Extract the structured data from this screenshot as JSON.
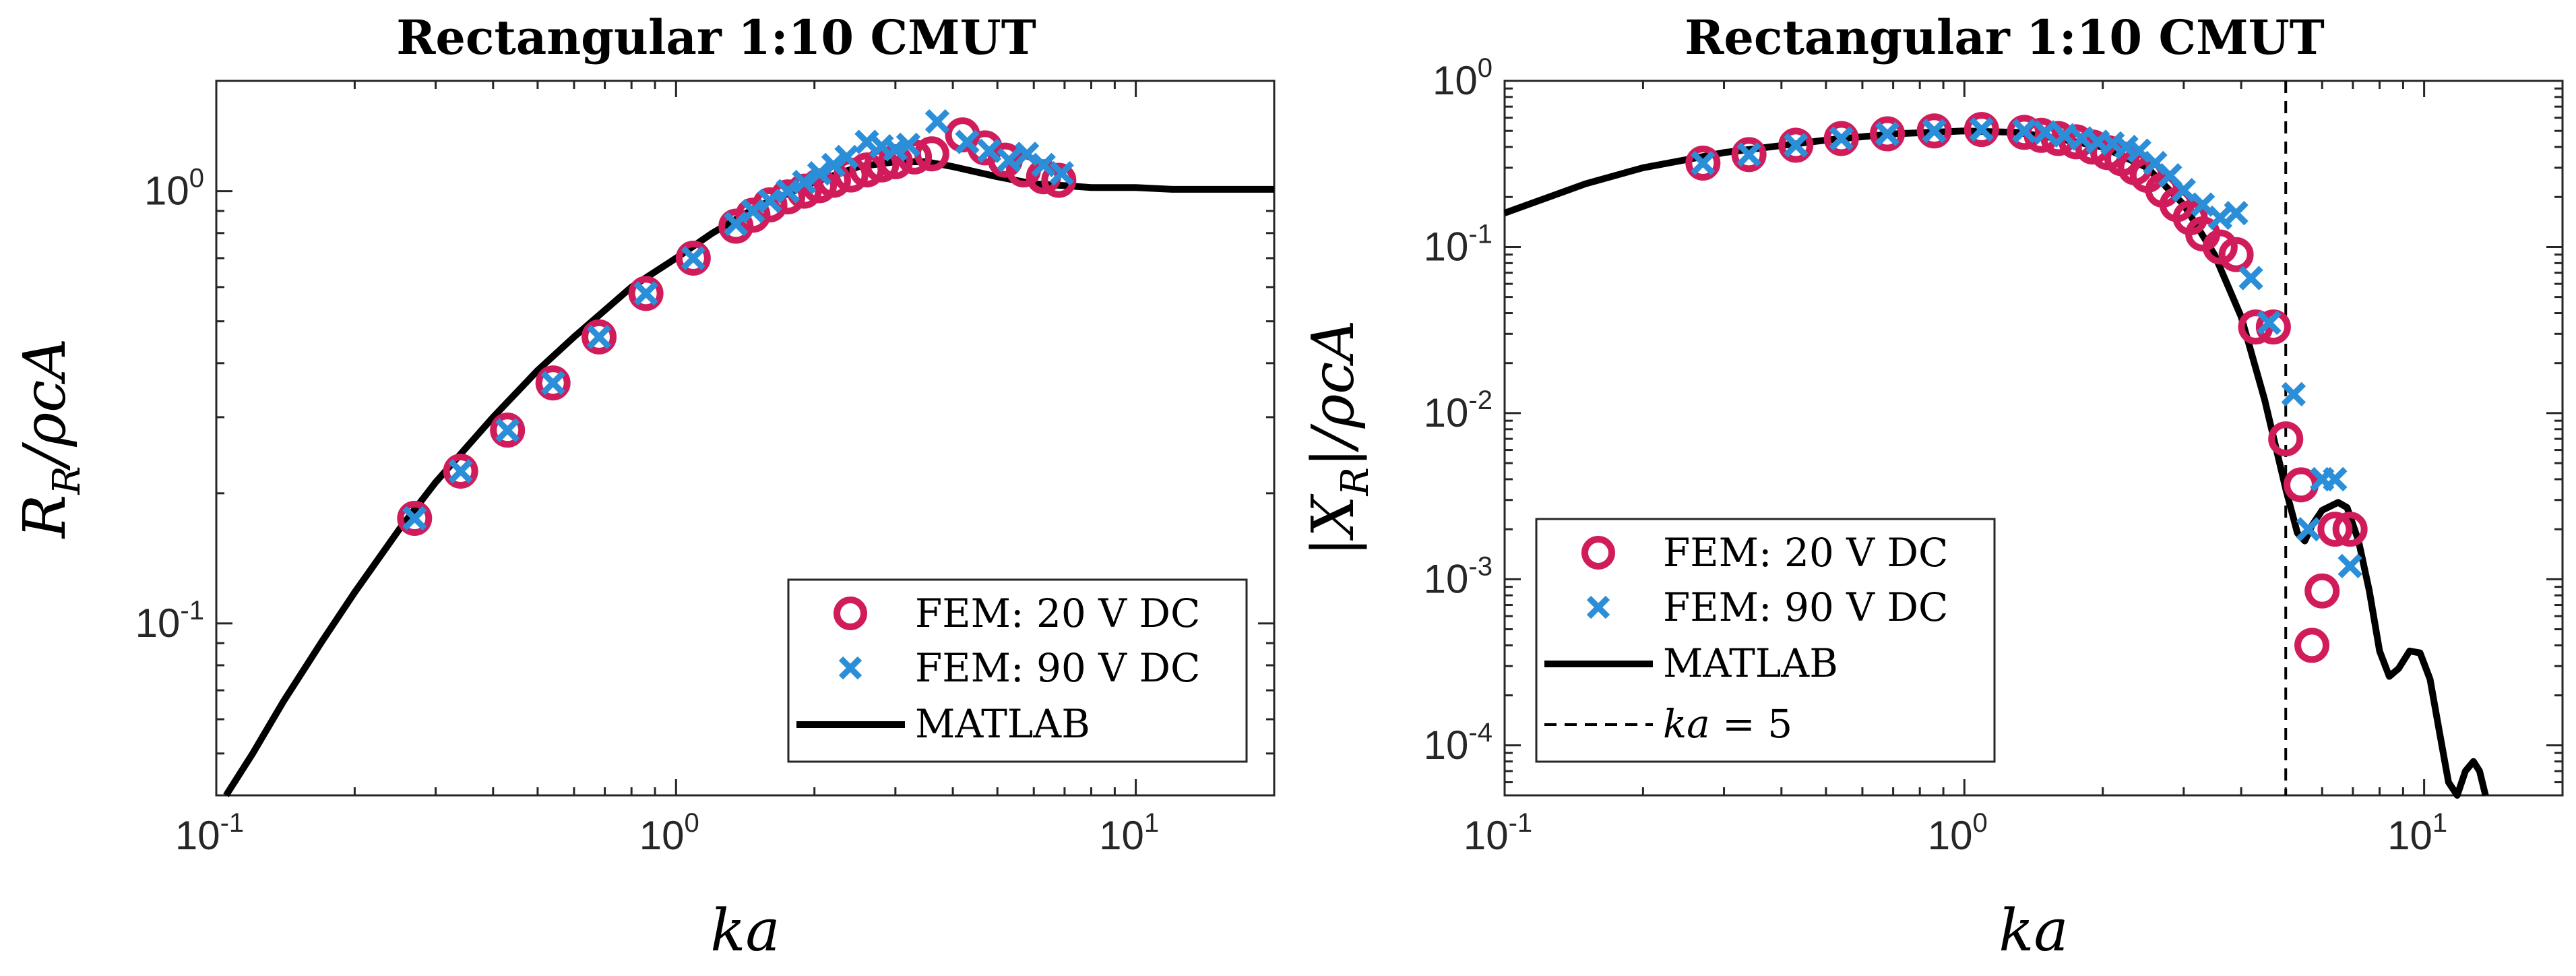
{
  "colors": {
    "fem20": "#D01C5B",
    "fem90": "#2A8FD8",
    "matlab": "#000000",
    "axis": "#262626"
  },
  "chart_data": [
    {
      "type": "scatter",
      "title": "Rectangular 1:10 CMUT",
      "xlabel": "ka",
      "ylabel": "R_R/ρcA",
      "ylabel_parts": {
        "main": "R",
        "sub": "R",
        "rest": "/ρcA"
      },
      "xscale": "log",
      "yscale": "log",
      "xlim": [
        0.1,
        20
      ],
      "ylim": [
        0.04,
        1.8
      ],
      "xticks": [
        {
          "value": 0.1,
          "base": "10",
          "exp": "-1"
        },
        {
          "value": 1,
          "base": "10",
          "exp": "0"
        },
        {
          "value": 10,
          "base": "10",
          "exp": "1"
        }
      ],
      "yticks": [
        {
          "value": 0.1,
          "base": "10",
          "exp": "-1"
        },
        {
          "value": 1,
          "base": "10",
          "exp": "0"
        }
      ],
      "legend_position": "bottom-right",
      "series": [
        {
          "name": "FEM: 20 V DC",
          "marker": "circle",
          "color": "#D01C5B",
          "x": [
            0.27,
            0.34,
            0.43,
            0.54,
            0.68,
            0.86,
            1.09,
            1.35,
            1.47,
            1.6,
            1.75,
            1.9,
            2.05,
            2.2,
            2.4,
            2.6,
            2.8,
            3.0,
            3.3,
            3.6,
            4.2,
            4.7,
            5.2,
            5.7,
            6.3,
            6.8
          ],
          "y": [
            0.175,
            0.225,
            0.28,
            0.36,
            0.46,
            0.58,
            0.7,
            0.83,
            0.88,
            0.93,
            0.97,
            1.0,
            1.03,
            1.06,
            1.09,
            1.12,
            1.15,
            1.17,
            1.2,
            1.22,
            1.35,
            1.26,
            1.18,
            1.12,
            1.08,
            1.06
          ]
        },
        {
          "name": "FEM: 90 V DC",
          "marker": "x",
          "color": "#2A8FD8",
          "x": [
            0.27,
            0.34,
            0.43,
            0.54,
            0.68,
            0.86,
            1.09,
            1.35,
            1.47,
            1.6,
            1.75,
            1.9,
            2.05,
            2.2,
            2.35,
            2.6,
            2.8,
            3.0,
            3.2,
            3.7,
            4.3,
            4.8,
            5.3,
            5.8,
            6.3,
            6.9
          ],
          "y": [
            0.175,
            0.225,
            0.28,
            0.36,
            0.46,
            0.58,
            0.7,
            0.84,
            0.9,
            0.95,
            1.0,
            1.05,
            1.1,
            1.15,
            1.2,
            1.3,
            1.27,
            1.25,
            1.28,
            1.45,
            1.3,
            1.24,
            1.18,
            1.22,
            1.15,
            1.1
          ]
        },
        {
          "name": "MATLAB",
          "marker": "line",
          "color": "#000000",
          "x": [
            0.105,
            0.12,
            0.14,
            0.17,
            0.2,
            0.25,
            0.3,
            0.4,
            0.5,
            0.6,
            0.8,
            1.0,
            1.2,
            1.5,
            1.8,
            2.0,
            2.5,
            3.0,
            3.5,
            4.0,
            5.0,
            6.0,
            7.0,
            8.0,
            10,
            12,
            15,
            20
          ],
          "y": [
            0.04,
            0.05,
            0.066,
            0.091,
            0.118,
            0.165,
            0.212,
            0.3,
            0.385,
            0.46,
            0.6,
            0.7,
            0.8,
            0.92,
            1.0,
            1.05,
            1.14,
            1.17,
            1.17,
            1.14,
            1.08,
            1.04,
            1.03,
            1.02,
            1.02,
            1.01,
            1.01,
            1.01
          ]
        }
      ]
    },
    {
      "type": "scatter",
      "title": "Rectangular 1:10 CMUT",
      "xlabel": "ka",
      "ylabel": "|X_R|/ρcA",
      "ylabel_parts": {
        "main": "|X",
        "sub": "R",
        "rest": "|/ρcA"
      },
      "xscale": "log",
      "yscale": "log",
      "xlim": [
        0.1,
        20
      ],
      "ylim": [
        5e-05,
        1.0
      ],
      "xticks": [
        {
          "value": 0.1,
          "base": "10",
          "exp": "-1"
        },
        {
          "value": 1,
          "base": "10",
          "exp": "0"
        },
        {
          "value": 10,
          "base": "10",
          "exp": "1"
        }
      ],
      "yticks": [
        {
          "value": 0.0001,
          "base": "10",
          "exp": "-4"
        },
        {
          "value": 0.001,
          "base": "10",
          "exp": "-3"
        },
        {
          "value": 0.01,
          "base": "10",
          "exp": "-2"
        },
        {
          "value": 0.1,
          "base": "10",
          "exp": "-1"
        },
        {
          "value": 1,
          "base": "10",
          "exp": "0"
        }
      ],
      "vline": {
        "x": 5,
        "label_var": "ka",
        "label_rest": " = 5"
      },
      "legend_position": "bottom-left",
      "series": [
        {
          "name": "FEM: 20 V DC",
          "marker": "circle",
          "color": "#D01C5B",
          "x": [
            0.27,
            0.34,
            0.43,
            0.54,
            0.68,
            0.86,
            1.09,
            1.35,
            1.47,
            1.6,
            1.75,
            1.9,
            2.05,
            2.2,
            2.35,
            2.5,
            2.7,
            2.9,
            3.1,
            3.3,
            3.6,
            3.9,
            4.3,
            4.7,
            5.0,
            5.4,
            5.7,
            6.0,
            6.4,
            6.9
          ],
          "y": [
            0.32,
            0.36,
            0.41,
            0.45,
            0.48,
            0.5,
            0.51,
            0.49,
            0.47,
            0.45,
            0.43,
            0.4,
            0.37,
            0.34,
            0.3,
            0.27,
            0.22,
            0.18,
            0.15,
            0.12,
            0.1,
            0.09,
            0.033,
            0.033,
            0.007,
            0.0037,
            0.0004,
            0.00085,
            0.002,
            0.002
          ]
        },
        {
          "name": "FEM: 90 V DC",
          "marker": "x",
          "color": "#2A8FD8",
          "x": [
            0.27,
            0.34,
            0.43,
            0.54,
            0.68,
            0.86,
            1.09,
            1.35,
            1.5,
            1.65,
            1.8,
            1.95,
            2.1,
            2.25,
            2.4,
            2.6,
            2.8,
            3.0,
            3.3,
            3.6,
            3.9,
            4.2,
            4.6,
            5.2,
            5.6,
            6.0,
            6.4,
            6.9
          ],
          "y": [
            0.32,
            0.36,
            0.41,
            0.45,
            0.48,
            0.5,
            0.51,
            0.5,
            0.49,
            0.47,
            0.45,
            0.43,
            0.42,
            0.4,
            0.38,
            0.32,
            0.27,
            0.22,
            0.18,
            0.15,
            0.16,
            0.065,
            0.035,
            0.013,
            0.002,
            0.004,
            0.004,
            0.0012
          ]
        },
        {
          "name": "MATLAB",
          "marker": "line",
          "color": "#000000",
          "x": [
            0.1,
            0.15,
            0.2,
            0.3,
            0.5,
            0.7,
            1.0,
            1.3,
            1.6,
            2.0,
            2.5,
            3.0,
            3.5,
            4.0,
            4.5,
            5.0,
            5.3,
            5.5,
            5.7,
            6.0,
            6.5,
            6.8,
            7.2,
            7.6,
            8.0,
            8.4,
            8.8,
            9.3,
            9.8,
            10.3,
            10.8,
            11.3,
            11.8,
            12.3,
            12.8,
            13.2,
            13.6
          ],
          "y": [
            0.16,
            0.24,
            0.3,
            0.37,
            0.44,
            0.48,
            0.5,
            0.49,
            0.45,
            0.4,
            0.3,
            0.18,
            0.09,
            0.038,
            0.012,
            0.0035,
            0.0019,
            0.0017,
            0.0021,
            0.0026,
            0.0029,
            0.0027,
            0.0017,
            0.00085,
            0.00037,
            0.00026,
            0.00029,
            0.00037,
            0.00036,
            0.00025,
            0.00012,
            6e-05,
            5e-05,
            7e-05,
            8e-05,
            7e-05,
            5e-05
          ]
        }
      ]
    }
  ]
}
